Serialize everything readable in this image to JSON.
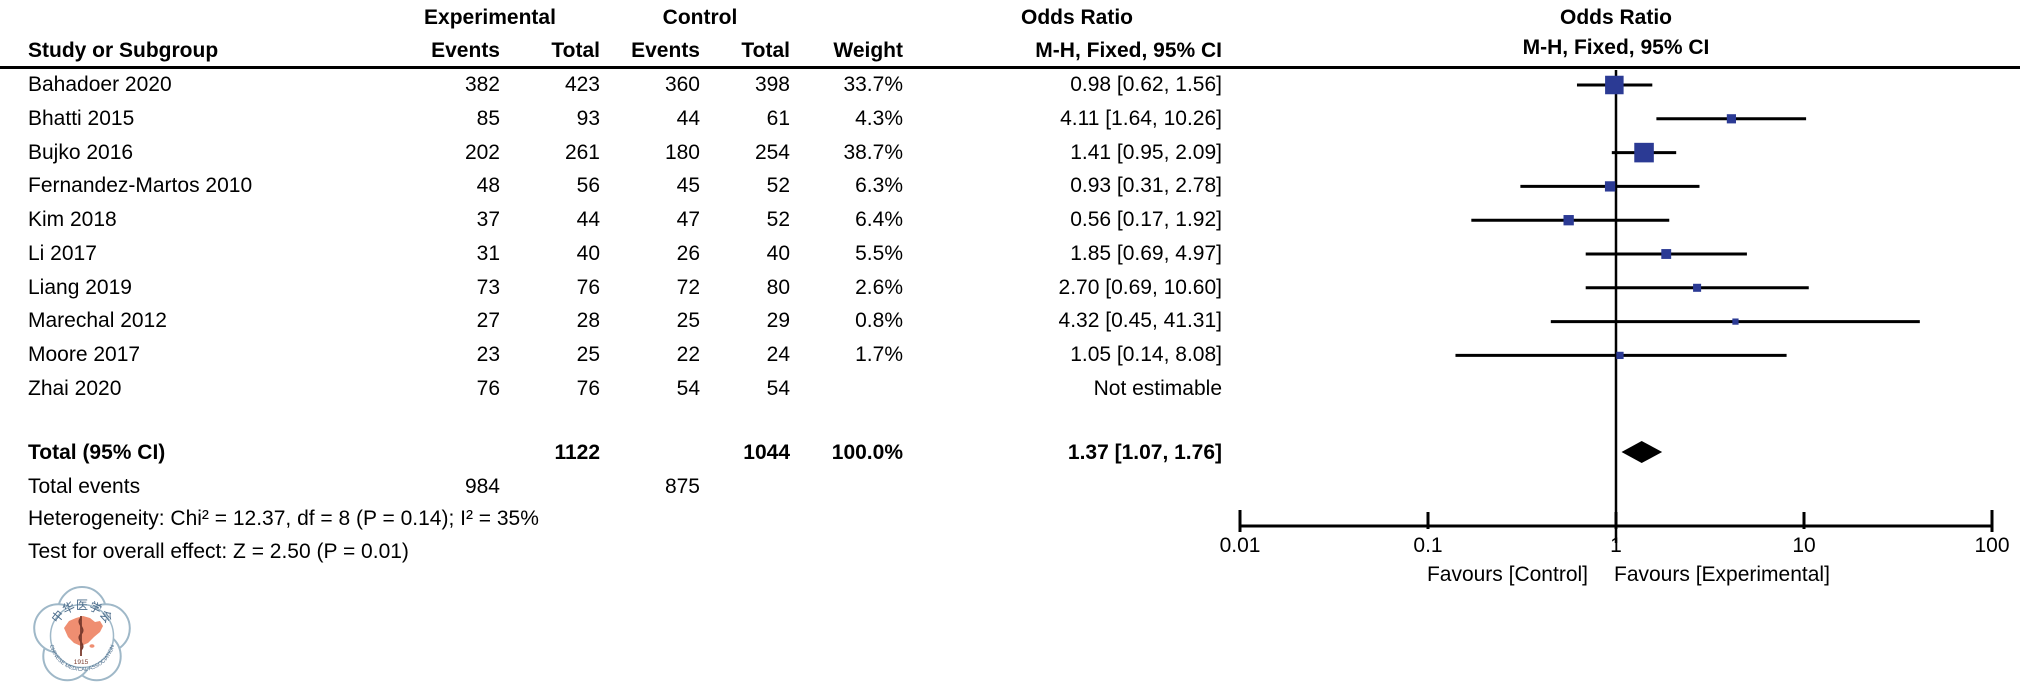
{
  "colors": {
    "marker_blue": "#2b3a94",
    "line_black": "#000000",
    "logo_ring_blue": "#9fb8c8",
    "logo_map_salmon": "#ef8e71",
    "logo_text_blue": "#4a6b8a",
    "logo_staff_brown": "#7a3b2e"
  },
  "table_header": {
    "experimental": "Experimental",
    "control": "Control",
    "study": "Study or Subgroup",
    "events": "Events",
    "total": "Total",
    "weight": "Weight",
    "odds_ratio": "Odds Ratio",
    "mh": "M-H, Fixed, 95% CI"
  },
  "plot_header": {
    "odds_ratio": "Odds Ratio",
    "mh": "M-H, Fixed, 95% CI"
  },
  "summary": {
    "total_label": "Total (95% CI)",
    "total_exp": "1122",
    "total_ctl": "1044",
    "total_weight": "100.0%",
    "total_or": "1.37 [1.07, 1.76]",
    "events_label": "Total events",
    "events_exp": "984",
    "events_ctl": "875",
    "heterogeneity": "Heterogeneity: Chi² = 12.37, df = 8 (P = 0.14); I² = 35%",
    "overall_effect": "Test for overall effect: Z = 2.50 (P = 0.01)"
  },
  "axis": {
    "favours_left": "Favours [Control]",
    "favours_right": "Favours [Experimental]"
  },
  "logo": {
    "top_text": "中华医学会",
    "year": "1915",
    "bottom_text": "CHINESE MEDICAL ASSOCIATION"
  },
  "chart_data": {
    "type": "forest",
    "effect_measure": "Odds Ratio (M-H, Fixed, 95% CI)",
    "x_scale": "log10",
    "x_ticks": [
      0.01,
      0.1,
      1,
      10,
      100
    ],
    "x_tick_labels": [
      "0.01",
      "0.1",
      "1",
      "10",
      "100"
    ],
    "no_effect_line": 1,
    "rows": [
      {
        "name": "Bahadoer 2020",
        "exp_events": "382",
        "exp_total": "423",
        "ctl_events": "360",
        "ctl_total": "398",
        "weight": "33.7%",
        "or_text": "0.98 [0.62, 1.56]",
        "or": 0.98,
        "lo": 0.62,
        "hi": 1.56,
        "w": 33.7
      },
      {
        "name": "Bhatti 2015",
        "exp_events": "85",
        "exp_total": "93",
        "ctl_events": "44",
        "ctl_total": "61",
        "weight": "4.3%",
        "or_text": "4.11 [1.64, 10.26]",
        "or": 4.11,
        "lo": 1.64,
        "hi": 10.26,
        "w": 4.3
      },
      {
        "name": "Bujko 2016",
        "exp_events": "202",
        "exp_total": "261",
        "ctl_events": "180",
        "ctl_total": "254",
        "weight": "38.7%",
        "or_text": "1.41 [0.95, 2.09]",
        "or": 1.41,
        "lo": 0.95,
        "hi": 2.09,
        "w": 38.7
      },
      {
        "name": "Fernandez-Martos 2010",
        "exp_events": "48",
        "exp_total": "56",
        "ctl_events": "45",
        "ctl_total": "52",
        "weight": "6.3%",
        "or_text": "0.93 [0.31, 2.78]",
        "or": 0.93,
        "lo": 0.31,
        "hi": 2.78,
        "w": 6.3
      },
      {
        "name": "Kim 2018",
        "exp_events": "37",
        "exp_total": "44",
        "ctl_events": "47",
        "ctl_total": "52",
        "weight": "6.4%",
        "or_text": "0.56 [0.17, 1.92]",
        "or": 0.56,
        "lo": 0.17,
        "hi": 1.92,
        "w": 6.4
      },
      {
        "name": "Li 2017",
        "exp_events": "31",
        "exp_total": "40",
        "ctl_events": "26",
        "ctl_total": "40",
        "weight": "5.5%",
        "or_text": "1.85 [0.69, 4.97]",
        "or": 1.85,
        "lo": 0.69,
        "hi": 4.97,
        "w": 5.5
      },
      {
        "name": "Liang 2019",
        "exp_events": "73",
        "exp_total": "76",
        "ctl_events": "72",
        "ctl_total": "80",
        "weight": "2.6%",
        "or_text": "2.70 [0.69, 10.60]",
        "or": 2.7,
        "lo": 0.69,
        "hi": 10.6,
        "w": 2.6
      },
      {
        "name": "Marechal 2012",
        "exp_events": "27",
        "exp_total": "28",
        "ctl_events": "25",
        "ctl_total": "29",
        "weight": "0.8%",
        "or_text": "4.32 [0.45, 41.31]",
        "or": 4.32,
        "lo": 0.45,
        "hi": 41.31,
        "w": 0.8
      },
      {
        "name": "Moore 2017",
        "exp_events": "23",
        "exp_total": "25",
        "ctl_events": "22",
        "ctl_total": "24",
        "weight": "1.7%",
        "or_text": "1.05 [0.14, 8.08]",
        "or": 1.05,
        "lo": 0.14,
        "hi": 8.08,
        "w": 1.7
      },
      {
        "name": "Zhai 2020",
        "exp_events": "76",
        "exp_total": "76",
        "ctl_events": "54",
        "ctl_total": "54",
        "weight": "",
        "or_text": "Not estimable",
        "or": null,
        "lo": null,
        "hi": null,
        "w": null
      }
    ],
    "total": {
      "or": 1.37,
      "lo": 1.07,
      "hi": 1.76
    }
  }
}
